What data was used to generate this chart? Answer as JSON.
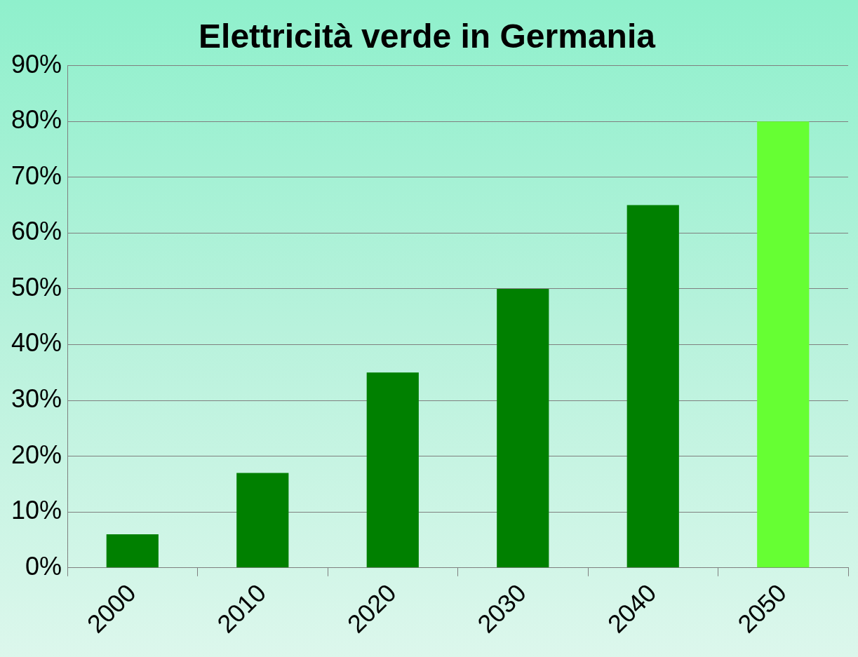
{
  "chart_data": {
    "type": "bar",
    "title": "Elettricità verde in Germania",
    "categories": [
      "2000",
      "2010",
      "2020",
      "2030",
      "2040",
      "2050"
    ],
    "values": [
      6,
      17,
      35,
      50,
      65,
      80
    ],
    "colors": [
      "#008000",
      "#008000",
      "#008000",
      "#008000",
      "#008000",
      "#66ff33"
    ],
    "ylim": [
      0,
      90
    ],
    "yticks": [
      {
        "value": 0,
        "label": "0%"
      },
      {
        "value": 10,
        "label": "10%"
      },
      {
        "value": 20,
        "label": "20%"
      },
      {
        "value": 30,
        "label": "30%"
      },
      {
        "value": 40,
        "label": "40%"
      },
      {
        "value": 50,
        "label": "50%"
      },
      {
        "value": 60,
        "label": "60%"
      },
      {
        "value": 70,
        "label": "70%"
      },
      {
        "value": 80,
        "label": "80%"
      },
      {
        "value": 90,
        "label": "90%"
      }
    ],
    "grid": "y",
    "legend": false
  }
}
